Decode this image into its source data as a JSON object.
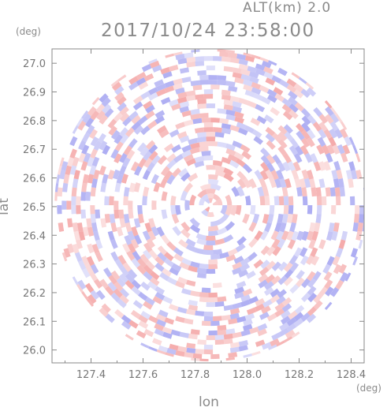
{
  "header": {
    "altitude": "ALT(km) 2.0",
    "timestamp": "2017/10/24 23:58:00"
  },
  "chart_data": {
    "type": "heatmap",
    "title": "2017/10/24 23:58:00",
    "subtitle": "ALT(km) 2.0",
    "xlabel": "lon",
    "ylabel": "lat",
    "x_unit": "(deg)",
    "y_unit": "(deg)",
    "xlim": [
      127.25,
      128.45
    ],
    "ylim": [
      25.955,
      27.05
    ],
    "x_ticks": [
      127.4,
      127.6,
      127.8,
      128.0,
      128.2,
      128.4
    ],
    "x_tick_labels": [
      "127.4",
      "127.6",
      "127.8",
      "128.0",
      "128.2",
      "128.4"
    ],
    "y_ticks": [
      26.0,
      26.1,
      26.2,
      26.3,
      26.4,
      26.5,
      26.6,
      26.7,
      26.8,
      26.9,
      27.0
    ],
    "y_tick_labels": [
      "26.0",
      "26.1",
      "26.2",
      "26.3",
      "26.4",
      "26.5",
      "26.6",
      "26.7",
      "26.8",
      "26.9",
      "27.0"
    ],
    "center": {
      "lon": 127.86,
      "lat": 26.505
    },
    "radius_deg_lat": 0.545,
    "colors": {
      "positive": "#f4a6a6",
      "negative": "#a9a9f2",
      "axis": "#888888"
    },
    "grid": false
  }
}
